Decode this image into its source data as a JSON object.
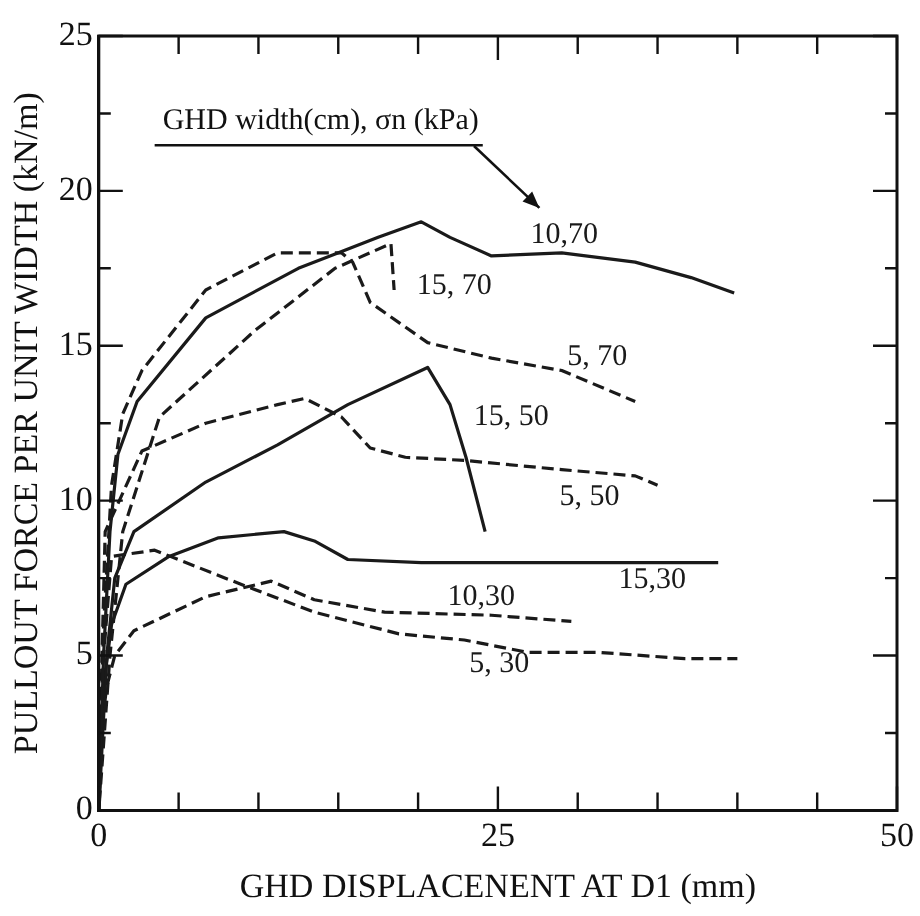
{
  "chart_data": {
    "type": "line",
    "xlabel": "GHD DISPLACENENT AT D1 (mm)",
    "ylabel": "PULLOUT FORCE PER UNIT WIDTH (kN/m)",
    "legend_title": "GHD width(cm), σn (kPa)",
    "xlim": [
      0,
      50
    ],
    "ylim": [
      0,
      25
    ],
    "xticks": [
      0,
      {
        "value": 5,
        "label": null
      },
      {
        "value": 10,
        "label": null
      },
      {
        "value": 15,
        "label": null
      },
      {
        "value": 20,
        "label": null
      },
      25,
      {
        "value": 30,
        "label": null
      },
      {
        "value": 35,
        "label": null
      },
      {
        "value": 40,
        "label": null
      },
      {
        "value": 45,
        "label": null
      },
      50
    ],
    "yticks": [
      0,
      {
        "value": 2.5,
        "label": null
      },
      5,
      {
        "value": 7.5,
        "label": null
      },
      10,
      {
        "value": 12.5,
        "label": null
      },
      15,
      {
        "value": 17.5,
        "label": null
      },
      20,
      {
        "value": 22.5,
        "label": null
      },
      25
    ],
    "grid": false,
    "legend": "top left",
    "marker": "none",
    "series": [
      {
        "name": "10,70",
        "color": "#1a1a1a",
        "line_style": "solid",
        "x": [
          0,
          0.3,
          0.7,
          1.2,
          2.4,
          6.7,
          12.5,
          17.5,
          20.2,
          22,
          24.6,
          29,
          33.6,
          37.1,
          39.8
        ],
        "values": [
          0,
          5,
          9,
          11.5,
          13.2,
          15.9,
          17.5,
          18.5,
          19,
          18.5,
          17.9,
          18,
          17.7,
          17.2,
          16.7
        ]
      },
      {
        "name": "15, 70",
        "color": "#1a1a1a",
        "line_style": "dashed",
        "x": [
          0,
          0.7,
          1.5,
          3.8,
          9.8,
          14.8,
          18.3,
          18.5
        ],
        "values": [
          0,
          5,
          9,
          12.7,
          15.5,
          17.5,
          18.3,
          16.8
        ]
      },
      {
        "name": "5, 70",
        "color": "#1a1a1a",
        "line_style": "dashed",
        "x": [
          0,
          0.3,
          0.8,
          1.5,
          2.7,
          6.7,
          11.2,
          15.2,
          15.9,
          17,
          20.6,
          24.6,
          29,
          33.6
        ],
        "values": [
          0,
          6,
          10.5,
          12.8,
          14.2,
          16.8,
          18,
          18,
          17.7,
          16.4,
          15.1,
          14.6,
          14.2,
          13.2
        ]
      },
      {
        "name": "15, 50",
        "color": "#1a1a1a",
        "line_style": "solid",
        "x": [
          0,
          0.5,
          1,
          2.2,
          6.7,
          11.2,
          15.6,
          20.6,
          22,
          23,
          24.2
        ],
        "values": [
          0,
          5,
          7.5,
          9,
          10.6,
          11.8,
          13.1,
          14.3,
          13.1,
          11.4,
          9
        ]
      },
      {
        "name": "5, 50",
        "color": "#1a1a1a",
        "line_style": "dashed",
        "x": [
          0,
          0.2,
          0.4,
          2.7,
          6.7,
          11.2,
          12.9,
          15.2,
          17,
          19.2,
          22.9,
          29,
          33.6,
          35
        ],
        "values": [
          0,
          5,
          9,
          11.6,
          12.5,
          13.1,
          13.3,
          12.7,
          11.7,
          11.4,
          11.3,
          11,
          10.8,
          10.5
        ]
      },
      {
        "name": "15,30",
        "color": "#1a1a1a",
        "line_style": "solid",
        "x": [
          0,
          0.3,
          0.8,
          1.7,
          4.4,
          7.5,
          11.6,
          13.5,
          15.6,
          20.2,
          29.1,
          38.8
        ],
        "values": [
          0,
          4,
          6,
          7.3,
          8.2,
          8.8,
          9,
          8.7,
          8.1,
          8,
          8,
          8
        ]
      },
      {
        "name": "10,30",
        "color": "#1a1a1a",
        "line_style": "dashed",
        "x": [
          0,
          0.5,
          1,
          2.2,
          6.7,
          10.8,
          13.5,
          17.9,
          24.6,
          29.6
        ],
        "values": [
          2,
          4,
          5,
          5.8,
          6.9,
          7.4,
          6.8,
          6.4,
          6.3,
          6.1
        ]
      },
      {
        "name": "5, 30",
        "color": "#1a1a1a",
        "line_style": "dashed",
        "x": [
          0,
          0.3,
          0.8,
          3.5,
          8.9,
          13.5,
          18.8,
          22.9,
          26.9,
          31.4,
          36.7,
          40
        ],
        "values": [
          0,
          5,
          8.2,
          8.4,
          7.3,
          6.4,
          5.7,
          5.5,
          5.1,
          5.1,
          4.9,
          4.9
        ]
      }
    ]
  }
}
